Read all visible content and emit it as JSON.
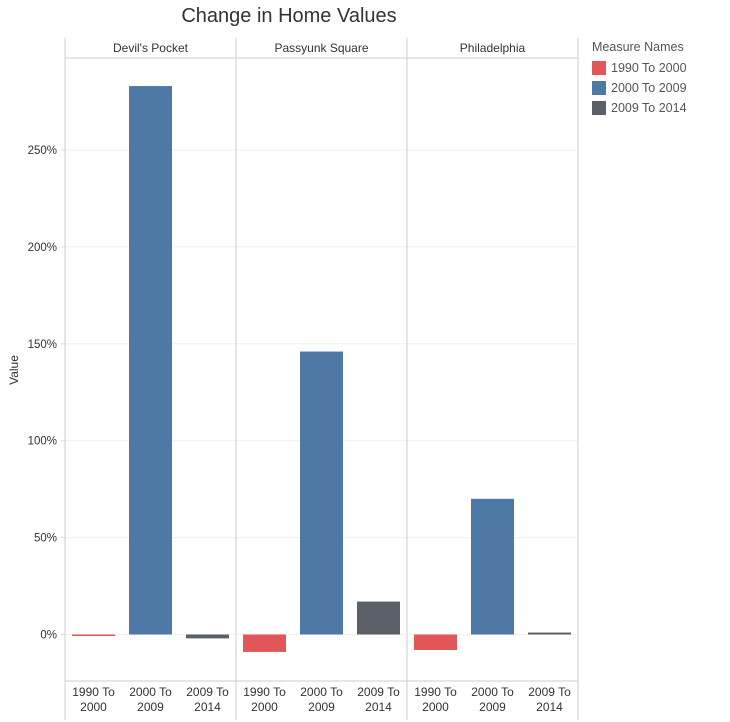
{
  "chart_data": {
    "type": "bar",
    "title": "Change in Home Values",
    "ylabel": "Value",
    "panels": [
      "Devil's Pocket",
      "Passyunk Square",
      "Philadelphia"
    ],
    "categories": [
      "1990 To 2000",
      "2000 To 2009",
      "2009 To 2014"
    ],
    "category_labels": [
      [
        "1990 To",
        "2000"
      ],
      [
        "2000 To",
        "2009"
      ],
      [
        "2009 To",
        "2014"
      ]
    ],
    "values": [
      [
        -0.5,
        283,
        -2
      ],
      [
        -9,
        146,
        17
      ],
      [
        -8,
        70,
        1
      ]
    ],
    "ylim": [
      -25,
      298
    ],
    "yticks": [
      0,
      50,
      100,
      150,
      200,
      250
    ],
    "ytick_labels": [
      "0%",
      "50%",
      "100%",
      "150%",
      "200%",
      "250%"
    ],
    "colors": [
      "#e15759",
      "#4e79a7",
      "#5b5f67"
    ],
    "legend": {
      "title": "Measure Names",
      "position": "right",
      "items": [
        "1990 To 2000",
        "2000 To 2009",
        "2009 To 2014"
      ]
    },
    "grid": true
  }
}
